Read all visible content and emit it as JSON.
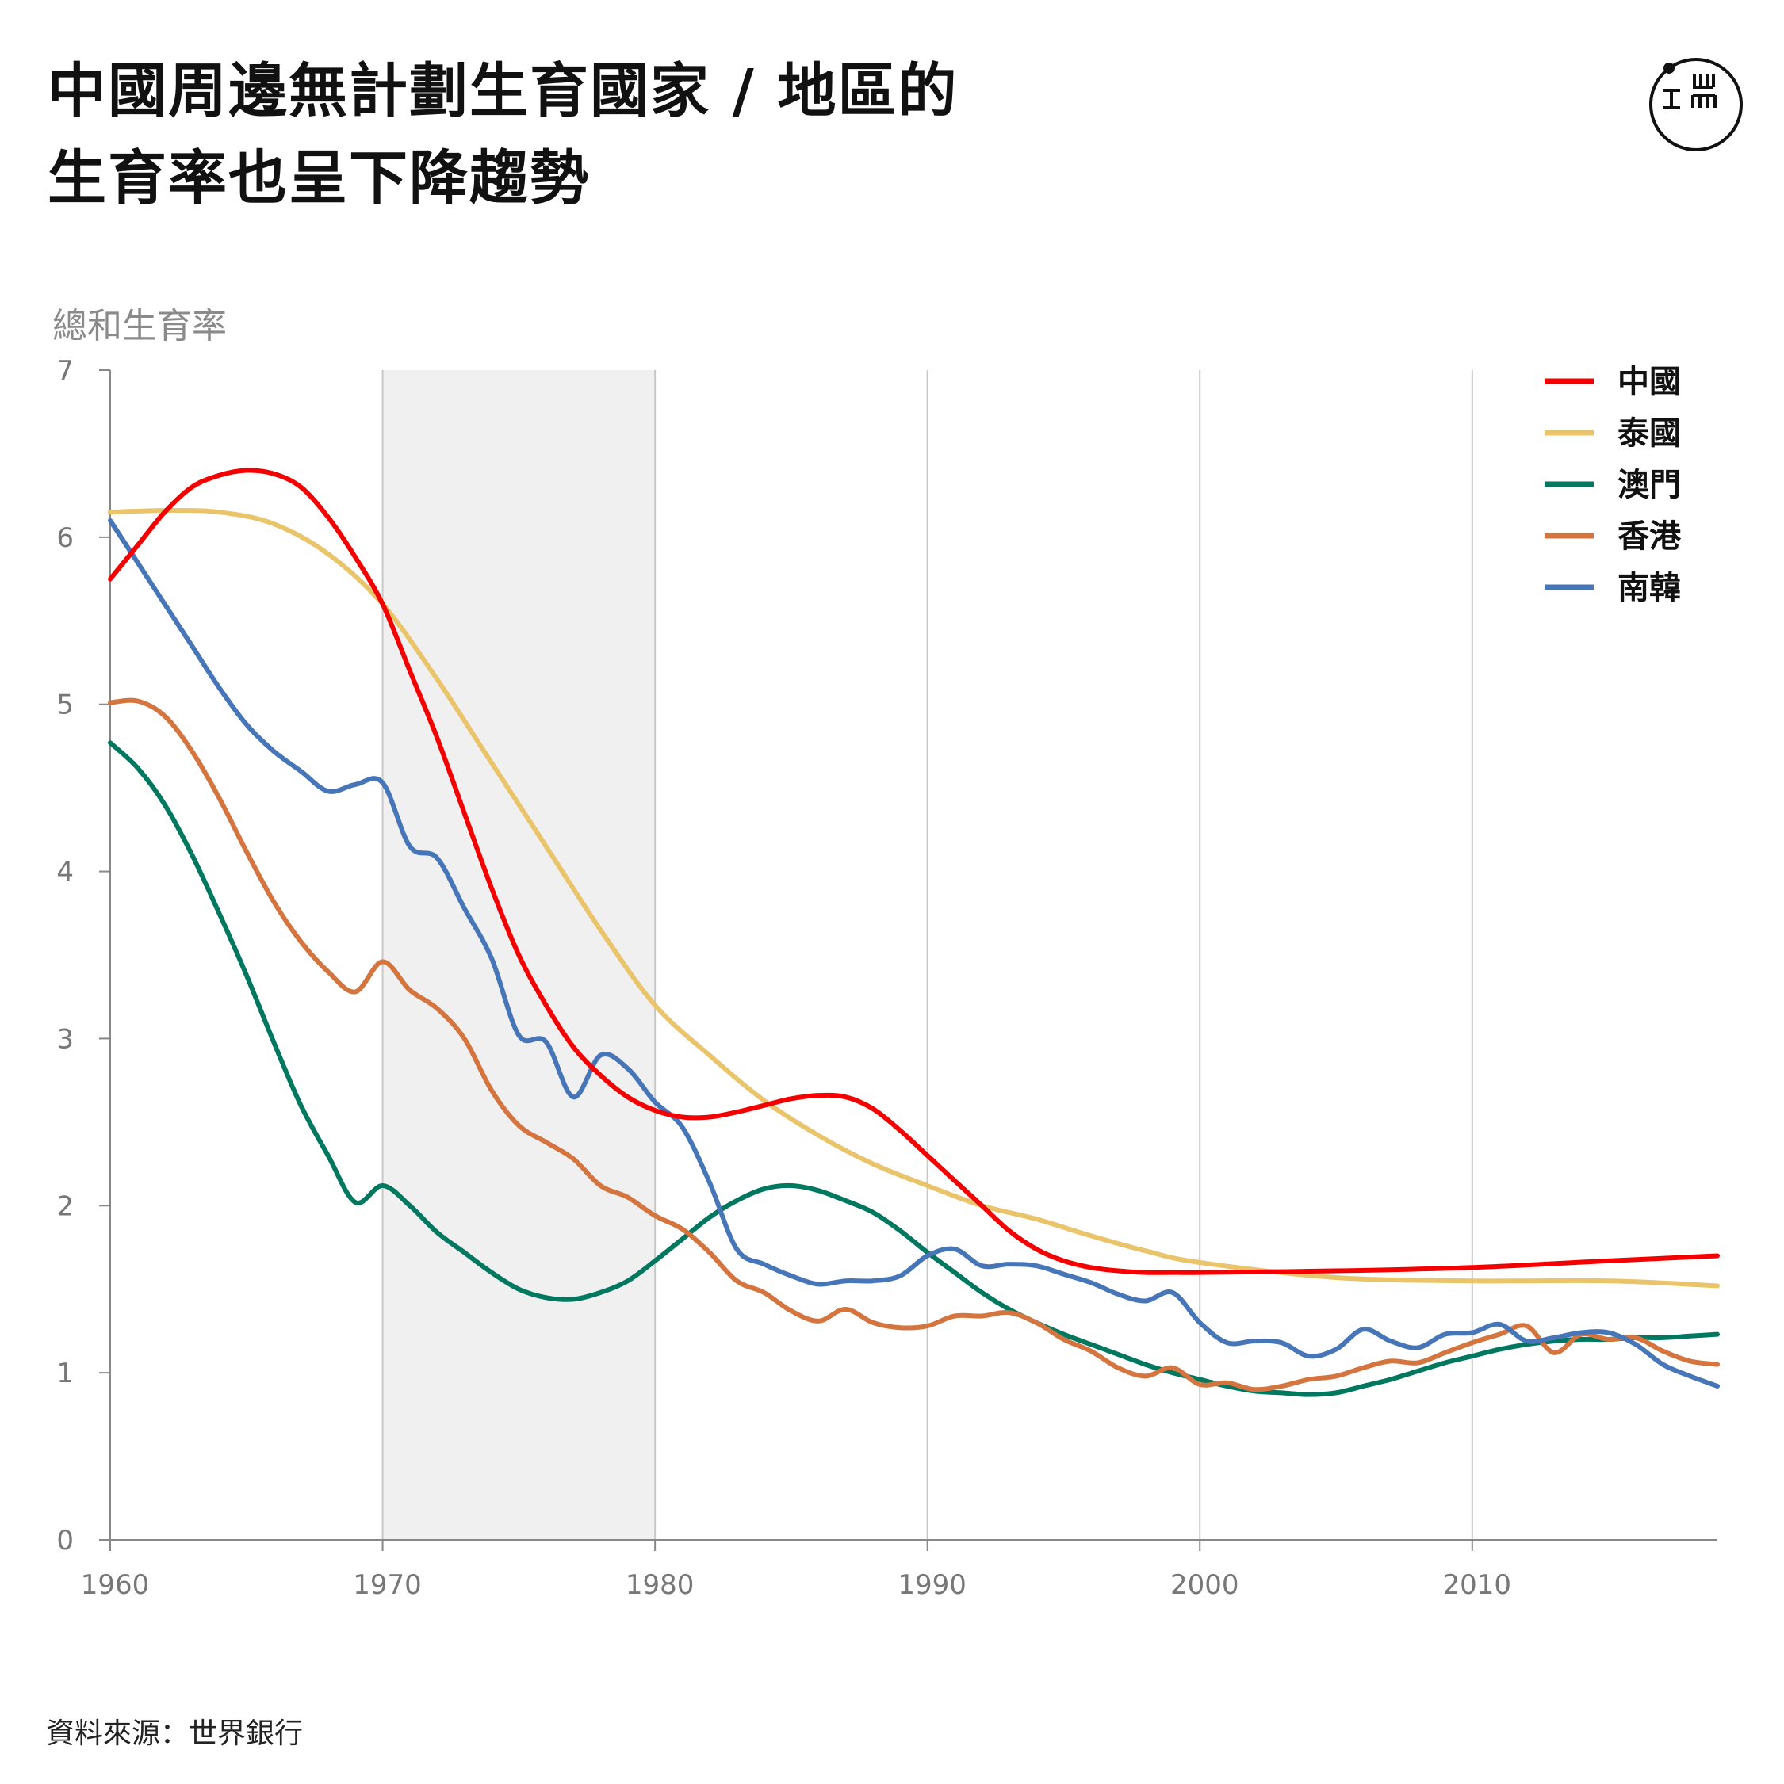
{
  "title": {
    "line1": "中國周邊無計劃生育國家 / 地區的",
    "line2": "生育率也呈下降趨勢"
  },
  "source": "資料來源：世界銀行",
  "icons": {
    "logo": "initium-logo"
  },
  "chart_data": {
    "type": "line",
    "ylabel": "總和生育率",
    "xlabel": "",
    "xlim": [
      1960,
      2019
    ],
    "ylim": [
      0,
      7
    ],
    "x_ticks": [
      1960,
      1970,
      1980,
      1990,
      2000,
      2010
    ],
    "y_ticks": [
      0,
      1,
      2,
      3,
      4,
      5,
      6,
      7
    ],
    "grid": "vertical",
    "legend_position": "top-right",
    "shaded_range": [
      1970,
      1980
    ],
    "series": [
      {
        "name": "中國",
        "color": "#f40000",
        "x": [
          1960,
          1961,
          1962,
          1963,
          1964,
          1965,
          1966,
          1967,
          1968,
          1969,
          1970,
          1971,
          1972,
          1973,
          1974,
          1975,
          1976,
          1977,
          1978,
          1979,
          1980,
          1981,
          1982,
          1983,
          1984,
          1985,
          1986,
          1987,
          1988,
          1989,
          1990,
          1991,
          1992,
          1993,
          1994,
          1995,
          1996,
          1997,
          1998,
          1999,
          2000,
          2005,
          2010,
          2015,
          2019
        ],
        "y": [
          5.75,
          5.95,
          6.15,
          6.3,
          6.37,
          6.4,
          6.38,
          6.3,
          6.12,
          5.88,
          5.6,
          5.2,
          4.8,
          4.35,
          3.9,
          3.5,
          3.2,
          2.95,
          2.78,
          2.65,
          2.57,
          2.53,
          2.53,
          2.56,
          2.6,
          2.64,
          2.66,
          2.65,
          2.58,
          2.45,
          2.3,
          2.15,
          2.0,
          1.85,
          1.74,
          1.67,
          1.63,
          1.61,
          1.6,
          1.6,
          1.6,
          1.61,
          1.63,
          1.67,
          1.7
        ]
      },
      {
        "name": "泰國",
        "color": "#e9c46a",
        "x": [
          1960,
          1962,
          1964,
          1966,
          1968,
          1970,
          1972,
          1974,
          1976,
          1978,
          1980,
          1982,
          1984,
          1986,
          1988,
          1990,
          1992,
          1994,
          1996,
          1998,
          2000,
          2005,
          2010,
          2015,
          2019
        ],
        "y": [
          6.15,
          6.16,
          6.15,
          6.08,
          5.9,
          5.6,
          5.15,
          4.65,
          4.15,
          3.65,
          3.2,
          2.9,
          2.63,
          2.42,
          2.25,
          2.12,
          2.0,
          1.92,
          1.82,
          1.73,
          1.66,
          1.57,
          1.55,
          1.55,
          1.52
        ]
      },
      {
        "name": "澳門",
        "color": "#00775f",
        "x": [
          1960,
          1961,
          1962,
          1963,
          1964,
          1965,
          1966,
          1967,
          1968,
          1969,
          1970,
          1971,
          1972,
          1973,
          1974,
          1975,
          1976,
          1977,
          1978,
          1979,
          1980,
          1981,
          1982,
          1983,
          1984,
          1985,
          1986,
          1987,
          1988,
          1989,
          1990,
          1991,
          1992,
          1993,
          1994,
          1995,
          1996,
          1997,
          1998,
          1999,
          2000,
          2001,
          2002,
          2003,
          2004,
          2005,
          2006,
          2007,
          2008,
          2009,
          2010,
          2011,
          2012,
          2013,
          2014,
          2015,
          2016,
          2017,
          2018,
          2019
        ],
        "y": [
          4.77,
          4.62,
          4.4,
          4.1,
          3.75,
          3.38,
          2.98,
          2.6,
          2.3,
          2.02,
          2.12,
          2.0,
          1.84,
          1.72,
          1.6,
          1.5,
          1.45,
          1.44,
          1.48,
          1.55,
          1.67,
          1.8,
          1.93,
          2.03,
          2.1,
          2.12,
          2.09,
          2.03,
          1.96,
          1.85,
          1.72,
          1.6,
          1.48,
          1.38,
          1.3,
          1.23,
          1.17,
          1.11,
          1.05,
          1.0,
          0.96,
          0.92,
          0.89,
          0.88,
          0.87,
          0.88,
          0.92,
          0.96,
          1.01,
          1.06,
          1.1,
          1.14,
          1.17,
          1.19,
          1.2,
          1.2,
          1.21,
          1.21,
          1.22,
          1.23
        ]
      },
      {
        "name": "香港",
        "color": "#d4743e",
        "x": [
          1960,
          1961,
          1962,
          1963,
          1964,
          1965,
          1966,
          1967,
          1968,
          1969,
          1970,
          1971,
          1972,
          1973,
          1974,
          1975,
          1976,
          1977,
          1978,
          1979,
          1980,
          1981,
          1982,
          1983,
          1984,
          1985,
          1986,
          1987,
          1988,
          1989,
          1990,
          1991,
          1992,
          1993,
          1994,
          1995,
          1996,
          1997,
          1998,
          1999,
          2000,
          2001,
          2002,
          2003,
          2004,
          2005,
          2006,
          2007,
          2008,
          2009,
          2010,
          2011,
          2012,
          2013,
          2014,
          2015,
          2016,
          2017,
          2018,
          2019
        ],
        "y": [
          5.01,
          5.02,
          4.93,
          4.72,
          4.44,
          4.12,
          3.82,
          3.58,
          3.4,
          3.28,
          3.46,
          3.29,
          3.18,
          3.0,
          2.69,
          2.48,
          2.38,
          2.28,
          2.12,
          2.05,
          1.94,
          1.86,
          1.72,
          1.55,
          1.48,
          1.37,
          1.31,
          1.38,
          1.3,
          1.27,
          1.28,
          1.34,
          1.34,
          1.36,
          1.3,
          1.2,
          1.13,
          1.03,
          0.98,
          1.03,
          0.93,
          0.94,
          0.9,
          0.92,
          0.96,
          0.98,
          1.03,
          1.07,
          1.06,
          1.12,
          1.18,
          1.23,
          1.28,
          1.12,
          1.23,
          1.2,
          1.21,
          1.13,
          1.07,
          1.05
        ]
      },
      {
        "name": "南韓",
        "color": "#4776b8",
        "x": [
          1960,
          1961,
          1962,
          1963,
          1964,
          1965,
          1966,
          1967,
          1968,
          1969,
          1970,
          1971,
          1972,
          1973,
          1974,
          1975,
          1976,
          1977,
          1978,
          1979,
          1980,
          1981,
          1982,
          1983,
          1984,
          1985,
          1986,
          1987,
          1988,
          1989,
          1990,
          1991,
          1992,
          1993,
          1994,
          1995,
          1996,
          1997,
          1998,
          1999,
          2000,
          2001,
          2002,
          2003,
          2004,
          2005,
          2006,
          2007,
          2008,
          2009,
          2010,
          2011,
          2012,
          2013,
          2014,
          2015,
          2016,
          2017,
          2018,
          2019
        ],
        "y": [
          6.1,
          5.85,
          5.6,
          5.35,
          5.1,
          4.88,
          4.72,
          4.6,
          4.48,
          4.52,
          4.53,
          4.15,
          4.08,
          3.78,
          3.48,
          3.02,
          2.98,
          2.65,
          2.9,
          2.82,
          2.62,
          2.47,
          2.14,
          1.74,
          1.65,
          1.58,
          1.53,
          1.55,
          1.55,
          1.58,
          1.7,
          1.74,
          1.64,
          1.65,
          1.64,
          1.59,
          1.54,
          1.47,
          1.43,
          1.48,
          1.3,
          1.18,
          1.19,
          1.18,
          1.1,
          1.14,
          1.26,
          1.19,
          1.15,
          1.23,
          1.24,
          1.29,
          1.19,
          1.21,
          1.24,
          1.24,
          1.17,
          1.05,
          0.98,
          0.92
        ]
      }
    ]
  }
}
